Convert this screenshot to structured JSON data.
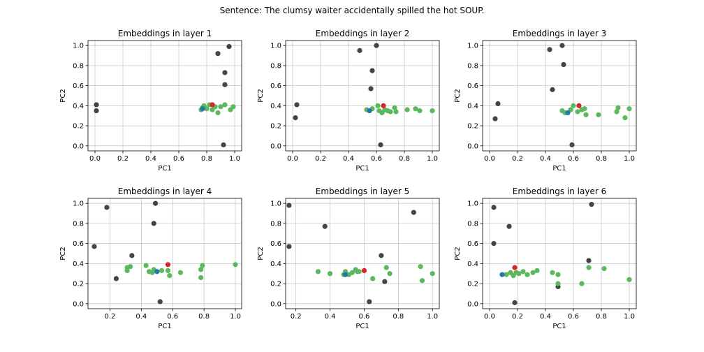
{
  "suptitle": "Sentence: The clumsy waiter accidentally spilled the hot SOUP.",
  "colors": {
    "other": "#444444",
    "context": "#5cb85c",
    "target": "#d62728",
    "head": "#1f77b4",
    "grid": "#c8c8c8"
  },
  "chart_data": [
    {
      "type": "scatter",
      "title": "Embeddings in layer 1",
      "xlabel": "PC1",
      "ylabel": "PC2",
      "xlim": [
        -0.05,
        1.05
      ],
      "ylim": [
        -0.05,
        1.05
      ],
      "xticks": [
        "0.0",
        "0.2",
        "0.4",
        "0.6",
        "0.8",
        "1.0"
      ],
      "yticks": [
        "0.0",
        "0.2",
        "0.4",
        "0.6",
        "0.8",
        "1.0"
      ],
      "grid": true,
      "series": [
        {
          "role": "other",
          "color": "#444444",
          "points": [
            [
              0.01,
              0.41
            ],
            [
              0.01,
              0.35
            ],
            [
              0.88,
              0.92
            ],
            [
              0.96,
              0.99
            ],
            [
              0.93,
              0.73
            ],
            [
              0.93,
              0.61
            ],
            [
              0.92,
              0.01
            ]
          ]
        },
        {
          "role": "context",
          "color": "#5cb85c",
          "points": [
            [
              0.76,
              0.36
            ],
            [
              0.78,
              0.4
            ],
            [
              0.8,
              0.37
            ],
            [
              0.82,
              0.41
            ],
            [
              0.84,
              0.36
            ],
            [
              0.86,
              0.39
            ],
            [
              0.88,
              0.33
            ],
            [
              0.9,
              0.39
            ],
            [
              0.93,
              0.41
            ],
            [
              0.97,
              0.36
            ],
            [
              0.99,
              0.39
            ],
            [
              0.77,
              0.38
            ]
          ]
        },
        {
          "role": "target",
          "color": "#d62728",
          "points": [
            [
              0.84,
              0.41
            ]
          ]
        },
        {
          "role": "head",
          "color": "#1f77b4",
          "points": [
            [
              0.77,
              0.37
            ]
          ]
        }
      ]
    },
    {
      "type": "scatter",
      "title": "Embeddings in layer 2",
      "xlabel": "PC1",
      "ylabel": "PC2",
      "xlim": [
        -0.05,
        1.05
      ],
      "ylim": [
        -0.05,
        1.05
      ],
      "xticks": [
        "0.0",
        "0.2",
        "0.4",
        "0.6",
        "0.8",
        "1.0"
      ],
      "yticks": [
        "0.0",
        "0.2",
        "0.4",
        "0.6",
        "0.8",
        "1.0"
      ],
      "grid": true,
      "series": [
        {
          "role": "other",
          "color": "#444444",
          "points": [
            [
              0.03,
              0.41
            ],
            [
              0.02,
              0.28
            ],
            [
              0.48,
              0.95
            ],
            [
              0.6,
              1.0
            ],
            [
              0.57,
              0.75
            ],
            [
              0.56,
              0.57
            ],
            [
              0.63,
              0.01
            ]
          ]
        },
        {
          "role": "context",
          "color": "#5cb85c",
          "points": [
            [
              0.53,
              0.36
            ],
            [
              0.57,
              0.37
            ],
            [
              0.61,
              0.4
            ],
            [
              0.62,
              0.35
            ],
            [
              0.64,
              0.33
            ],
            [
              0.66,
              0.36
            ],
            [
              0.68,
              0.35
            ],
            [
              0.7,
              0.34
            ],
            [
              0.73,
              0.38
            ],
            [
              0.74,
              0.34
            ],
            [
              0.82,
              0.36
            ],
            [
              0.88,
              0.37
            ],
            [
              0.91,
              0.35
            ],
            [
              1.0,
              0.35
            ]
          ]
        },
        {
          "role": "target",
          "color": "#d62728",
          "points": [
            [
              0.65,
              0.4
            ]
          ]
        },
        {
          "role": "head",
          "color": "#1f77b4",
          "points": [
            [
              0.55,
              0.35
            ]
          ]
        }
      ]
    },
    {
      "type": "scatter",
      "title": "Embeddings in layer 3",
      "xlabel": "PC1",
      "ylabel": "PC2",
      "xlim": [
        -0.05,
        1.05
      ],
      "ylim": [
        -0.05,
        1.05
      ],
      "xticks": [
        "0.0",
        "0.2",
        "0.4",
        "0.6",
        "0.8",
        "1.0"
      ],
      "yticks": [
        "0.0",
        "0.2",
        "0.4",
        "0.6",
        "0.8",
        "1.0"
      ],
      "grid": true,
      "series": [
        {
          "role": "other",
          "color": "#444444",
          "points": [
            [
              0.06,
              0.42
            ],
            [
              0.04,
              0.27
            ],
            [
              0.43,
              0.96
            ],
            [
              0.52,
              1.0
            ],
            [
              0.53,
              0.81
            ],
            [
              0.45,
              0.56
            ],
            [
              0.59,
              0.01
            ]
          ]
        },
        {
          "role": "context",
          "color": "#5cb85c",
          "points": [
            [
              0.52,
              0.35
            ],
            [
              0.54,
              0.33
            ],
            [
              0.58,
              0.36
            ],
            [
              0.6,
              0.4
            ],
            [
              0.63,
              0.34
            ],
            [
              0.66,
              0.36
            ],
            [
              0.68,
              0.37
            ],
            [
              0.69,
              0.31
            ],
            [
              0.78,
              0.31
            ],
            [
              0.91,
              0.34
            ],
            [
              0.92,
              0.38
            ],
            [
              0.97,
              0.28
            ],
            [
              1.0,
              0.37
            ]
          ]
        },
        {
          "role": "target",
          "color": "#d62728",
          "points": [
            [
              0.64,
              0.4
            ]
          ]
        },
        {
          "role": "head",
          "color": "#1f77b4",
          "points": [
            [
              0.56,
              0.33
            ]
          ]
        }
      ]
    },
    {
      "type": "scatter",
      "title": "Embeddings in layer 4",
      "xlabel": "PC1",
      "ylabel": "PC2",
      "xlim": [
        0.06,
        1.04
      ],
      "ylim": [
        -0.05,
        1.05
      ],
      "xticks": [
        "0.2",
        "0.4",
        "0.6",
        "0.8",
        "1.0"
      ],
      "yticks": [
        "0.0",
        "0.2",
        "0.4",
        "0.6",
        "0.8",
        "1.0"
      ],
      "grid": true,
      "series": [
        {
          "role": "other",
          "color": "#444444",
          "points": [
            [
              0.1,
              0.57
            ],
            [
              0.18,
              0.96
            ],
            [
              0.49,
              1.0
            ],
            [
              0.48,
              0.8
            ],
            [
              0.34,
              0.48
            ],
            [
              0.24,
              0.25
            ],
            [
              0.52,
              0.02
            ]
          ]
        },
        {
          "role": "context",
          "color": "#5cb85c",
          "points": [
            [
              0.31,
              0.33
            ],
            [
              0.31,
              0.36
            ],
            [
              0.33,
              0.37
            ],
            [
              0.43,
              0.38
            ],
            [
              0.45,
              0.32
            ],
            [
              0.47,
              0.31
            ],
            [
              0.48,
              0.34
            ],
            [
              0.53,
              0.33
            ],
            [
              0.57,
              0.33
            ],
            [
              0.58,
              0.28
            ],
            [
              0.65,
              0.31
            ],
            [
              0.78,
              0.34
            ],
            [
              0.79,
              0.38
            ],
            [
              0.78,
              0.26
            ],
            [
              1.0,
              0.39
            ]
          ]
        },
        {
          "role": "target",
          "color": "#d62728",
          "points": [
            [
              0.57,
              0.39
            ]
          ]
        },
        {
          "role": "head",
          "color": "#1f77b4",
          "points": [
            [
              0.5,
              0.32
            ]
          ]
        }
      ]
    },
    {
      "type": "scatter",
      "title": "Embeddings in layer 5",
      "xlabel": "PC1",
      "ylabel": "PC2",
      "xlim": [
        0.14,
        1.04
      ],
      "ylim": [
        -0.05,
        1.05
      ],
      "xticks": [
        "0.2",
        "0.4",
        "0.6",
        "0.8",
        "1.0"
      ],
      "yticks": [
        "0.0",
        "0.2",
        "0.4",
        "0.6",
        "0.8",
        "1.0"
      ],
      "grid": true,
      "series": [
        {
          "role": "other",
          "color": "#444444",
          "points": [
            [
              0.16,
              0.98
            ],
            [
              0.16,
              0.57
            ],
            [
              0.37,
              0.77
            ],
            [
              0.89,
              0.91
            ],
            [
              0.7,
              0.48
            ],
            [
              0.72,
              0.22
            ],
            [
              0.63,
              0.02
            ]
          ]
        },
        {
          "role": "context",
          "color": "#5cb85c",
          "points": [
            [
              0.33,
              0.32
            ],
            [
              0.4,
              0.3
            ],
            [
              0.48,
              0.29
            ],
            [
              0.49,
              0.32
            ],
            [
              0.51,
              0.29
            ],
            [
              0.53,
              0.31
            ],
            [
              0.55,
              0.34
            ],
            [
              0.56,
              0.32
            ],
            [
              0.57,
              0.32
            ],
            [
              0.65,
              0.25
            ],
            [
              0.73,
              0.36
            ],
            [
              0.75,
              0.3
            ],
            [
              0.93,
              0.37
            ],
            [
              0.94,
              0.23
            ],
            [
              1.0,
              0.3
            ]
          ]
        },
        {
          "role": "target",
          "color": "#d62728",
          "points": [
            [
              0.6,
              0.33
            ]
          ]
        },
        {
          "role": "head",
          "color": "#1f77b4",
          "points": [
            [
              0.49,
              0.29
            ]
          ]
        }
      ]
    },
    {
      "type": "scatter",
      "title": "Embeddings in layer 6",
      "xlabel": "PC1",
      "ylabel": "PC2",
      "xlim": [
        -0.05,
        1.05
      ],
      "ylim": [
        -0.05,
        1.05
      ],
      "xticks": [
        "0.0",
        "0.2",
        "0.4",
        "0.6",
        "0.8",
        "1.0"
      ],
      "yticks": [
        "0.0",
        "0.2",
        "0.4",
        "0.6",
        "0.8",
        "1.0"
      ],
      "grid": true,
      "series": [
        {
          "role": "other",
          "color": "#444444",
          "points": [
            [
              0.03,
              0.96
            ],
            [
              0.03,
              0.6
            ],
            [
              0.14,
              0.77
            ],
            [
              0.73,
              0.99
            ],
            [
              0.71,
              0.43
            ],
            [
              0.49,
              0.17
            ],
            [
              0.18,
              0.01
            ]
          ]
        },
        {
          "role": "context",
          "color": "#5cb85c",
          "points": [
            [
              0.12,
              0.29
            ],
            [
              0.15,
              0.31
            ],
            [
              0.17,
              0.28
            ],
            [
              0.19,
              0.31
            ],
            [
              0.21,
              0.3
            ],
            [
              0.24,
              0.32
            ],
            [
              0.27,
              0.29
            ],
            [
              0.31,
              0.31
            ],
            [
              0.34,
              0.33
            ],
            [
              0.45,
              0.31
            ],
            [
              0.49,
              0.29
            ],
            [
              0.49,
              0.2
            ],
            [
              0.66,
              0.2
            ],
            [
              0.71,
              0.36
            ],
            [
              0.82,
              0.35
            ],
            [
              1.0,
              0.24
            ]
          ]
        },
        {
          "role": "target",
          "color": "#d62728",
          "points": [
            [
              0.18,
              0.36
            ]
          ]
        },
        {
          "role": "head",
          "color": "#1f77b4",
          "points": [
            [
              0.09,
              0.29
            ]
          ]
        }
      ]
    }
  ]
}
